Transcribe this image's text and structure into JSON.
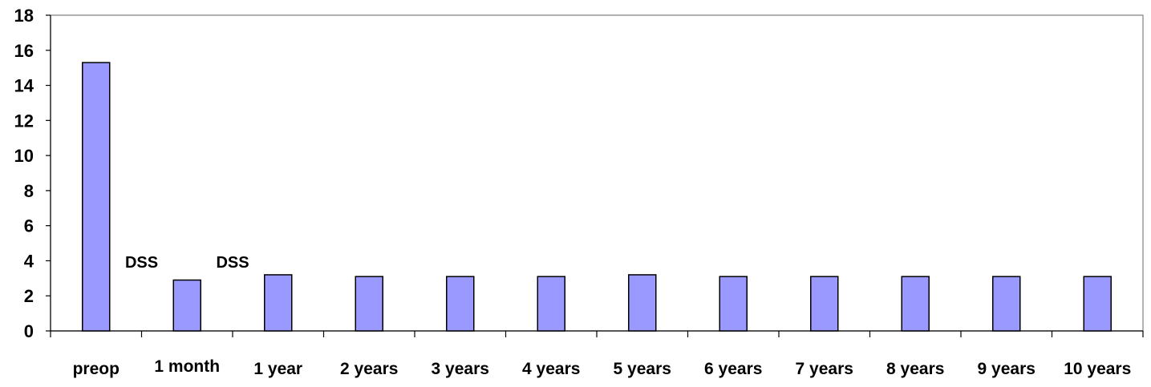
{
  "chart_data": {
    "type": "bar",
    "title": "",
    "xlabel": "",
    "ylabel": "",
    "ylim": [
      0,
      18
    ],
    "yticks": [
      0,
      2,
      4,
      6,
      8,
      10,
      12,
      14,
      16,
      18
    ],
    "categories": [
      "preop",
      "1 month",
      "1 year",
      "2 years",
      "3 years",
      "4 years",
      "5 years",
      "6 years",
      "7 years",
      "8 years",
      "9 years",
      "10 years"
    ],
    "values": [
      15.3,
      2.9,
      3.2,
      3.1,
      3.1,
      3.1,
      3.2,
      3.1,
      3.1,
      3.1,
      3.1,
      3.1
    ],
    "bar_color": "#9999ff",
    "grid": false,
    "legend": "none",
    "annotations": [
      {
        "text": "DSS",
        "category": "preop",
        "y": 3.8
      },
      {
        "text": "DSS",
        "category": "1 month",
        "y": 3.8
      }
    ]
  }
}
